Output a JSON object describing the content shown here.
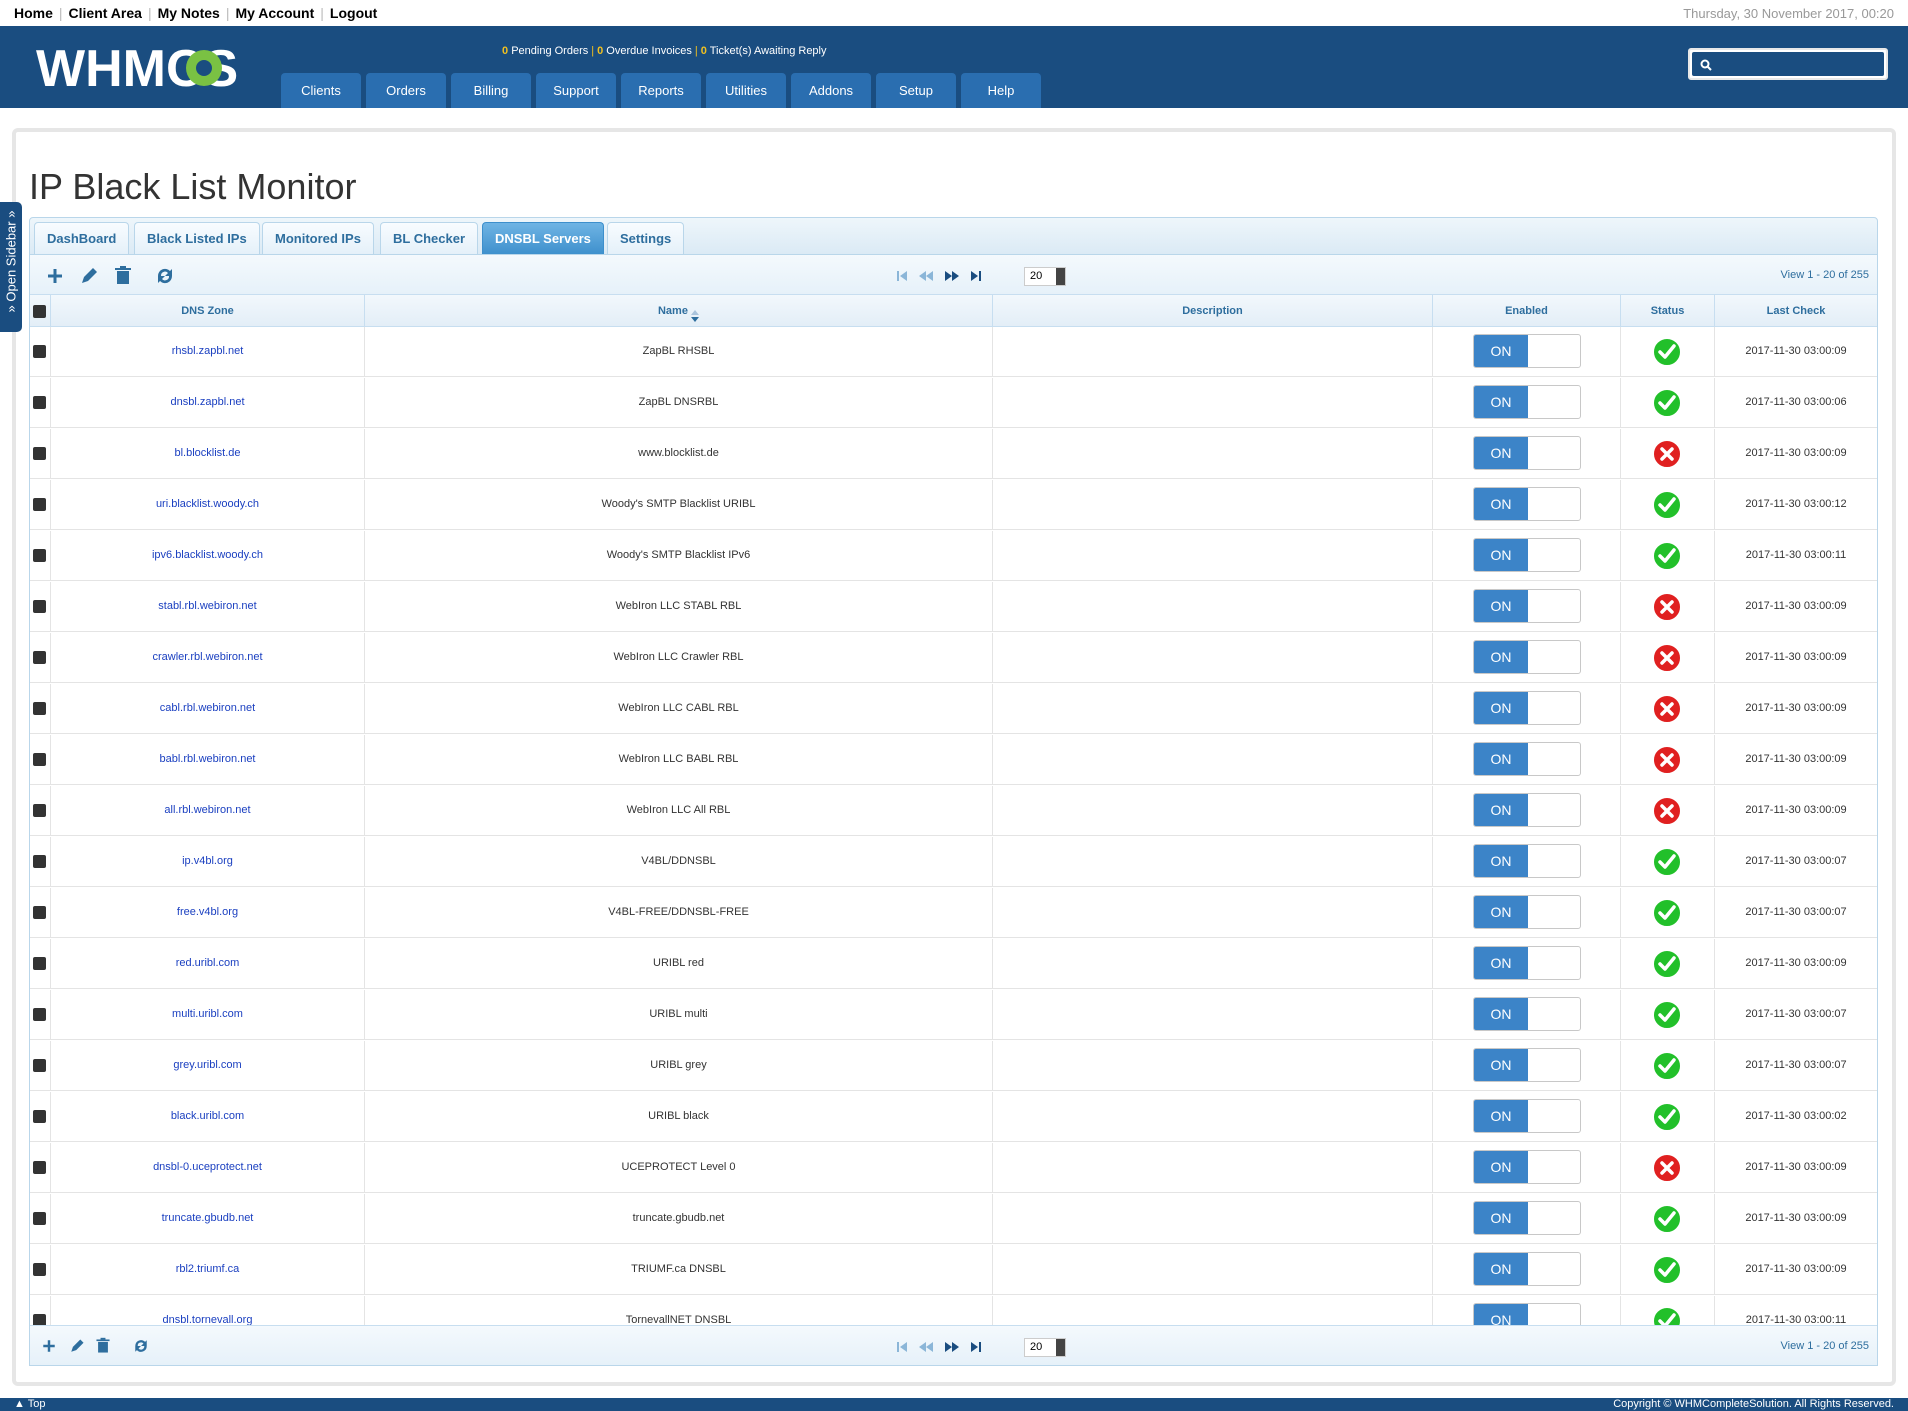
{
  "toplinks": [
    "Home",
    "Client Area",
    "My Notes",
    "My Account",
    "Logout"
  ],
  "datetime": "Thursday, 30 November 2017, 00:20",
  "logo_text": "WHMCS",
  "stats": {
    "pending_count": "0",
    "pending_label": "Pending Orders",
    "overdue_count": "0",
    "overdue_label": "Overdue Invoices",
    "tickets_count": "0",
    "tickets_label": "Ticket(s) Awaiting Reply"
  },
  "nav": [
    "Clients",
    "Orders",
    "Billing",
    "Support",
    "Reports",
    "Utilities",
    "Addons",
    "Setup",
    "Help"
  ],
  "sidebar_label": "» Open Sidebar »",
  "page_title": "IP Black List Monitor",
  "tabs": [
    "DashBoard",
    "Black Listed IPs",
    "Monitored IPs",
    "BL Checker",
    "DNSBL Servers",
    "Settings"
  ],
  "active_tab": "DNSBL Servers",
  "pager": {
    "page_size": "20",
    "view_info": "View 1 - 20 of 255"
  },
  "columns": {
    "zone": "DNS Zone",
    "name": "Name",
    "desc": "Description",
    "enabled": "Enabled",
    "status": "Status",
    "last": "Last Check"
  },
  "toggle_label": "ON",
  "rows": [
    {
      "zone": "rhsbl.zapbl.net",
      "name": "ZapBL RHSBL",
      "desc": "",
      "status": "ok",
      "last": "2017-11-30 03:00:09"
    },
    {
      "zone": "dnsbl.zapbl.net",
      "name": "ZapBL DNSRBL",
      "desc": "",
      "status": "ok",
      "last": "2017-11-30 03:00:06"
    },
    {
      "zone": "bl.blocklist.de",
      "name": "www.blocklist.de",
      "desc": "",
      "status": "fail",
      "last": "2017-11-30 03:00:09"
    },
    {
      "zone": "uri.blacklist.woody.ch",
      "name": "Woody's SMTP Blacklist URIBL",
      "desc": "",
      "status": "ok",
      "last": "2017-11-30 03:00:12"
    },
    {
      "zone": "ipv6.blacklist.woody.ch",
      "name": "Woody's SMTP Blacklist IPv6",
      "desc": "",
      "status": "ok",
      "last": "2017-11-30 03:00:11"
    },
    {
      "zone": "stabl.rbl.webiron.net",
      "name": "WebIron LLC STABL RBL",
      "desc": "",
      "status": "fail",
      "last": "2017-11-30 03:00:09"
    },
    {
      "zone": "crawler.rbl.webiron.net",
      "name": "WebIron LLC Crawler RBL",
      "desc": "",
      "status": "fail",
      "last": "2017-11-30 03:00:09"
    },
    {
      "zone": "cabl.rbl.webiron.net",
      "name": "WebIron LLC CABL RBL",
      "desc": "",
      "status": "fail",
      "last": "2017-11-30 03:00:09"
    },
    {
      "zone": "babl.rbl.webiron.net",
      "name": "WebIron LLC BABL RBL",
      "desc": "",
      "status": "fail",
      "last": "2017-11-30 03:00:09"
    },
    {
      "zone": "all.rbl.webiron.net",
      "name": "WebIron LLC All RBL",
      "desc": "",
      "status": "fail",
      "last": "2017-11-30 03:00:09"
    },
    {
      "zone": "ip.v4bl.org",
      "name": "V4BL/DDNSBL",
      "desc": "",
      "status": "ok",
      "last": "2017-11-30 03:00:07"
    },
    {
      "zone": "free.v4bl.org",
      "name": "V4BL-FREE/DDNSBL-FREE",
      "desc": "",
      "status": "ok",
      "last": "2017-11-30 03:00:07"
    },
    {
      "zone": "red.uribl.com",
      "name": "URIBL red",
      "desc": "",
      "status": "ok",
      "last": "2017-11-30 03:00:09"
    },
    {
      "zone": "multi.uribl.com",
      "name": "URIBL multi",
      "desc": "",
      "status": "ok",
      "last": "2017-11-30 03:00:07"
    },
    {
      "zone": "grey.uribl.com",
      "name": "URIBL grey",
      "desc": "",
      "status": "ok",
      "last": "2017-11-30 03:00:07"
    },
    {
      "zone": "black.uribl.com",
      "name": "URIBL black",
      "desc": "",
      "status": "ok",
      "last": "2017-11-30 03:00:02"
    },
    {
      "zone": "dnsbl-0.uceprotect.net",
      "name": "UCEPROTECT Level 0",
      "desc": "",
      "status": "fail",
      "last": "2017-11-30 03:00:09"
    },
    {
      "zone": "truncate.gbudb.net",
      "name": "truncate.gbudb.net",
      "desc": "",
      "status": "ok",
      "last": "2017-11-30 03:00:09"
    },
    {
      "zone": "rbl2.triumf.ca",
      "name": "TRIUMF.ca DNSBL",
      "desc": "",
      "status": "ok",
      "last": "2017-11-30 03:00:09"
    },
    {
      "zone": "dnsbl.tornevall.org",
      "name": "TornevallNET DNSBL",
      "desc": "",
      "status": "ok",
      "last": "2017-11-30 03:00:11"
    }
  ],
  "colors": {
    "header": "#1a4d80",
    "nav_tab": "#2a6eb0",
    "ok": "#22c02a",
    "fail": "#e02020",
    "toggle_on": "#3c84c8"
  },
  "footer": {
    "top_label": "▲ Top",
    "copyright": "Copyright © WHMCompleteSolution. All Rights Reserved."
  }
}
